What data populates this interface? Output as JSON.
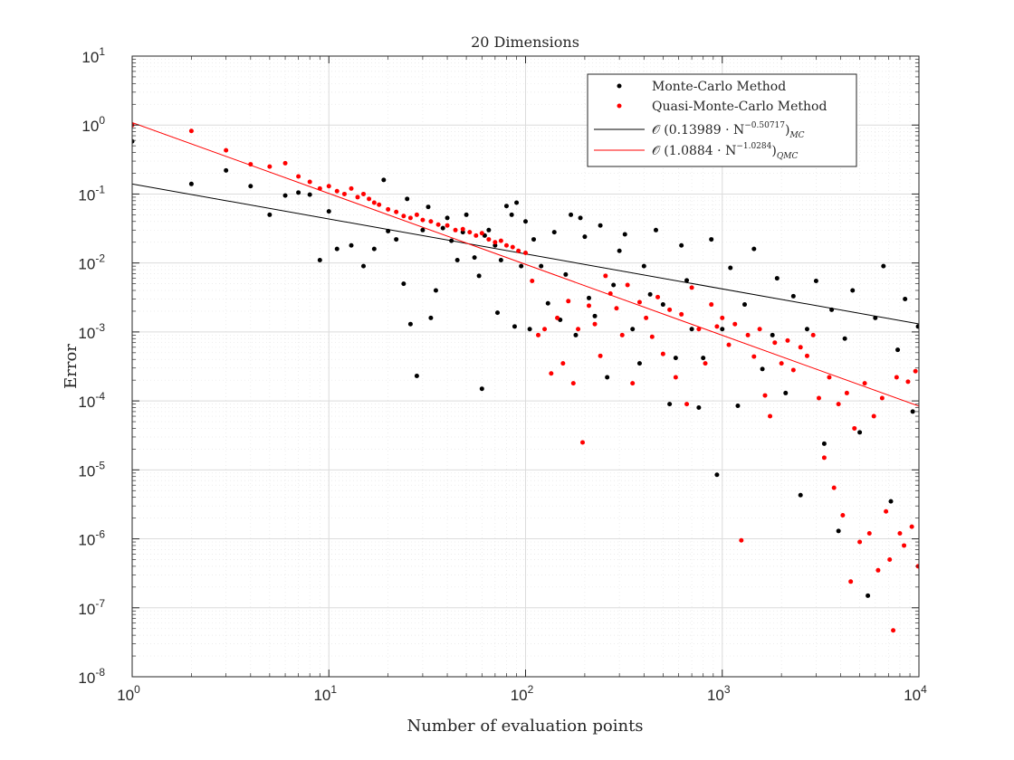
{
  "chart_data": {
    "type": "scatter",
    "title": "20 Dimensions",
    "xlabel": "Number of evaluation points",
    "ylabel": "Error",
    "xscale": "log",
    "yscale": "log",
    "xlim": [
      1,
      10000
    ],
    "ylim": [
      1e-08,
      10
    ],
    "grid": true,
    "minor_grid": true,
    "legend_position": "top-right",
    "x_ticks": [
      {
        "value": 1,
        "base": "10",
        "exp": "0"
      },
      {
        "value": 10,
        "base": "10",
        "exp": "1"
      },
      {
        "value": 100,
        "base": "10",
        "exp": "2"
      },
      {
        "value": 1000,
        "base": "10",
        "exp": "3"
      },
      {
        "value": 10000,
        "base": "10",
        "exp": "4"
      }
    ],
    "y_ticks": [
      {
        "value": 1e-08,
        "base": "10",
        "exp": "-8"
      },
      {
        "value": 1e-07,
        "base": "10",
        "exp": "-7"
      },
      {
        "value": 1e-06,
        "base": "10",
        "exp": "-6"
      },
      {
        "value": 1e-05,
        "base": "10",
        "exp": "-5"
      },
      {
        "value": 0.0001,
        "base": "10",
        "exp": "-4"
      },
      {
        "value": 0.001,
        "base": "10",
        "exp": "-3"
      },
      {
        "value": 0.01,
        "base": "10",
        "exp": "-2"
      },
      {
        "value": 0.1,
        "base": "10",
        "exp": "-1"
      },
      {
        "value": 1,
        "base": "10",
        "exp": "0"
      },
      {
        "value": 10,
        "base": "10",
        "exp": "1"
      }
    ],
    "series": [
      {
        "name": "Monte-Carlo Method",
        "kind": "scatter",
        "color": "#000000",
        "points": [
          [
            1,
            0.58
          ],
          [
            2,
            0.14
          ],
          [
            3,
            0.22
          ],
          [
            4,
            0.13
          ],
          [
            5,
            0.05
          ],
          [
            6,
            0.095
          ],
          [
            7,
            0.105
          ],
          [
            8,
            0.098
          ],
          [
            9,
            0.011
          ],
          [
            10,
            0.056
          ],
          [
            11,
            0.016
          ],
          [
            13,
            0.018
          ],
          [
            15,
            0.009
          ],
          [
            17,
            0.016
          ],
          [
            19,
            0.16
          ],
          [
            20,
            0.029
          ],
          [
            22,
            0.022
          ],
          [
            24,
            0.005
          ],
          [
            25,
            0.085
          ],
          [
            26,
            0.0013
          ],
          [
            28,
            0.00023
          ],
          [
            30,
            0.03
          ],
          [
            32,
            0.065
          ],
          [
            33,
            0.0016
          ],
          [
            35,
            0.004
          ],
          [
            38,
            0.032
          ],
          [
            40,
            0.045
          ],
          [
            42,
            0.021
          ],
          [
            45,
            0.011
          ],
          [
            48,
            0.028
          ],
          [
            50,
            0.05
          ],
          [
            55,
            0.012
          ],
          [
            58,
            0.0065
          ],
          [
            60,
            0.00015
          ],
          [
            62,
            0.025
          ],
          [
            65,
            0.03
          ],
          [
            70,
            0.018
          ],
          [
            72,
            0.0019
          ],
          [
            75,
            0.011
          ],
          [
            80,
            0.067
          ],
          [
            85,
            0.05
          ],
          [
            88,
            0.0012
          ],
          [
            90,
            0.075
          ],
          [
            95,
            0.009
          ],
          [
            100,
            0.04
          ],
          [
            105,
            0.0011
          ],
          [
            110,
            0.022
          ],
          [
            120,
            0.009
          ],
          [
            130,
            0.0026
          ],
          [
            140,
            0.028
          ],
          [
            150,
            0.0015
          ],
          [
            160,
            0.0068
          ],
          [
            170,
            0.05
          ],
          [
            180,
            0.0009
          ],
          [
            190,
            0.045
          ],
          [
            200,
            0.024
          ],
          [
            210,
            0.0031
          ],
          [
            225,
            0.0017
          ],
          [
            240,
            0.035
          ],
          [
            260,
            0.00022
          ],
          [
            280,
            0.0048
          ],
          [
            300,
            0.015
          ],
          [
            320,
            0.026
          ],
          [
            350,
            0.0011
          ],
          [
            380,
            0.00035
          ],
          [
            400,
            0.009
          ],
          [
            430,
            0.0035
          ],
          [
            460,
            0.03
          ],
          [
            500,
            0.0025
          ],
          [
            540,
            9e-05
          ],
          [
            580,
            0.00042
          ],
          [
            620,
            0.018
          ],
          [
            660,
            0.0056
          ],
          [
            700,
            0.0011
          ],
          [
            760,
            8e-05
          ],
          [
            800,
            0.00042
          ],
          [
            880,
            0.022
          ],
          [
            940,
            8.5e-06
          ],
          [
            1000,
            0.0011
          ],
          [
            1100,
            0.0085
          ],
          [
            1200,
            8.5e-05
          ],
          [
            1300,
            0.0025
          ],
          [
            1450,
            0.016
          ],
          [
            1600,
            0.00029
          ],
          [
            1800,
            0.0009
          ],
          [
            1900,
            0.006
          ],
          [
            2100,
            0.00013
          ],
          [
            2300,
            0.0033
          ],
          [
            2500,
            4.3e-06
          ],
          [
            2700,
            0.0011
          ],
          [
            3000,
            0.0055
          ],
          [
            3300,
            2.4e-05
          ],
          [
            3600,
            0.0021
          ],
          [
            3900,
            1.3e-06
          ],
          [
            4200,
            0.0008
          ],
          [
            4600,
            0.004
          ],
          [
            5000,
            3.5e-05
          ],
          [
            5500,
            1.5e-07
          ],
          [
            6000,
            0.0016
          ],
          [
            6600,
            0.009
          ],
          [
            7200,
            3.5e-06
          ],
          [
            7800,
            0.00055
          ],
          [
            8500,
            0.003
          ],
          [
            9300,
            7e-05
          ],
          [
            9900,
            0.0012
          ]
        ]
      },
      {
        "name": "Quasi-Monte-Carlo Method",
        "kind": "scatter",
        "color": "#ff0000",
        "points": [
          [
            1,
            1.0
          ],
          [
            2,
            0.82
          ],
          [
            3,
            0.43
          ],
          [
            4,
            0.27
          ],
          [
            5,
            0.25
          ],
          [
            6,
            0.28
          ],
          [
            7,
            0.18
          ],
          [
            8,
            0.15
          ],
          [
            9,
            0.12
          ],
          [
            10,
            0.13
          ],
          [
            11,
            0.11
          ],
          [
            12,
            0.1
          ],
          [
            13,
            0.12
          ],
          [
            14,
            0.09
          ],
          [
            15,
            0.1
          ],
          [
            16,
            0.085
          ],
          [
            17,
            0.075
          ],
          [
            18,
            0.07
          ],
          [
            20,
            0.06
          ],
          [
            22,
            0.055
          ],
          [
            24,
            0.048
          ],
          [
            26,
            0.045
          ],
          [
            28,
            0.05
          ],
          [
            30,
            0.042
          ],
          [
            33,
            0.04
          ],
          [
            36,
            0.036
          ],
          [
            40,
            0.035
          ],
          [
            44,
            0.03
          ],
          [
            48,
            0.031
          ],
          [
            52,
            0.028
          ],
          [
            56,
            0.025
          ],
          [
            60,
            0.027
          ],
          [
            65,
            0.022
          ],
          [
            70,
            0.02
          ],
          [
            75,
            0.021
          ],
          [
            80,
            0.018
          ],
          [
            86,
            0.017
          ],
          [
            92,
            0.015
          ],
          [
            100,
            0.014
          ],
          [
            108,
            0.0055
          ],
          [
            116,
            0.0009
          ],
          [
            125,
            0.0011
          ],
          [
            135,
            0.00025
          ],
          [
            145,
            0.0016
          ],
          [
            155,
            0.00035
          ],
          [
            165,
            0.0028
          ],
          [
            175,
            0.00018
          ],
          [
            185,
            0.0011
          ],
          [
            195,
            2.5e-05
          ],
          [
            210,
            0.0024
          ],
          [
            225,
            0.0013
          ],
          [
            240,
            0.00045
          ],
          [
            255,
            0.0065
          ],
          [
            270,
            0.0036
          ],
          [
            290,
            0.0022
          ],
          [
            310,
            0.0009
          ],
          [
            330,
            0.0048
          ],
          [
            350,
            0.00018
          ],
          [
            380,
            0.0027
          ],
          [
            410,
            0.0016
          ],
          [
            440,
            0.00085
          ],
          [
            470,
            0.0032
          ],
          [
            500,
            0.00048
          ],
          [
            540,
            0.0021
          ],
          [
            580,
            0.00022
          ],
          [
            620,
            0.0018
          ],
          [
            660,
            9e-05
          ],
          [
            700,
            0.0044
          ],
          [
            760,
            0.0011
          ],
          [
            820,
            0.00035
          ],
          [
            880,
            0.0025
          ],
          [
            940,
            0.0012
          ],
          [
            1000,
            0.0016
          ],
          [
            1080,
            0.00065
          ],
          [
            1160,
            0.0013
          ],
          [
            1250,
            9.5e-07
          ],
          [
            1350,
            0.0009
          ],
          [
            1450,
            0.00044
          ],
          [
            1550,
            0.0011
          ],
          [
            1650,
            0.00012
          ],
          [
            1750,
            6e-05
          ],
          [
            1850,
            0.0007
          ],
          [
            2000,
            0.00035
          ],
          [
            2150,
            0.00075
          ],
          [
            2300,
            0.00028
          ],
          [
            2500,
            0.0006
          ],
          [
            2700,
            0.00045
          ],
          [
            2900,
            0.0009
          ],
          [
            3100,
            0.00011
          ],
          [
            3300,
            1.5e-05
          ],
          [
            3500,
            0.00022
          ],
          [
            3700,
            5.5e-06
          ],
          [
            3900,
            9e-05
          ],
          [
            4100,
            2.2e-06
          ],
          [
            4300,
            0.00013
          ],
          [
            4500,
            2.4e-07
          ],
          [
            4700,
            4e-05
          ],
          [
            5000,
            9e-07
          ],
          [
            5300,
            0.00018
          ],
          [
            5600,
            1.2e-06
          ],
          [
            5900,
            6e-05
          ],
          [
            6200,
            3.5e-07
          ],
          [
            6500,
            0.00011
          ],
          [
            6800,
            2.5e-06
          ],
          [
            7100,
            5e-07
          ],
          [
            7400,
            4.7e-08
          ],
          [
            7700,
            0.00022
          ],
          [
            8000,
            1.2e-06
          ],
          [
            8400,
            8e-07
          ],
          [
            8800,
            0.00019
          ],
          [
            9200,
            1.5e-06
          ],
          [
            9600,
            0.00027
          ],
          [
            9900,
            4e-07
          ]
        ]
      },
      {
        "name": "MC fit",
        "legend_prefix": "𝒪 (0.13989 · N",
        "legend_exp": "−0.50717",
        "legend_suffix": ")",
        "legend_sub": "MC",
        "kind": "line",
        "color": "#000000",
        "coefficient": 0.13989,
        "exponent": -0.50717
      },
      {
        "name": "QMC fit",
        "legend_prefix": "𝒪 (1.0884 · N",
        "legend_exp": "−1.0284",
        "legend_suffix": ")",
        "legend_sub": "QMC",
        "kind": "line",
        "color": "#ff0000",
        "coefficient": 1.0884,
        "exponent": -1.0284
      }
    ]
  }
}
